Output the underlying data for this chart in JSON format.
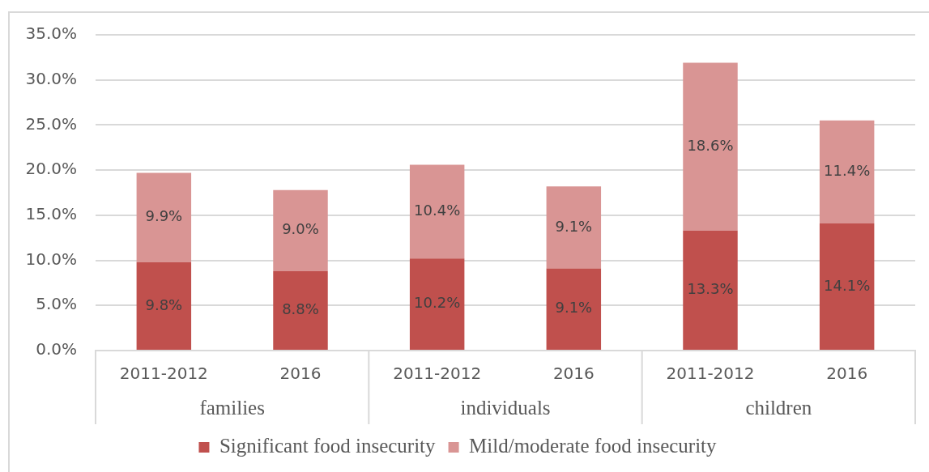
{
  "chart_data": {
    "type": "bar",
    "stacked": true,
    "categories": [
      "2011-2012",
      "2016",
      "2011-2012",
      "2016",
      "2011-2012",
      "2016"
    ],
    "series": [
      {
        "name": "Significant food insecurity",
        "color": "#c0504d",
        "values": [
          9.8,
          8.8,
          10.2,
          9.1,
          13.3,
          14.1
        ],
        "value_labels": [
          "9.8%",
          "8.8%",
          "10.2%",
          "9.1%",
          "13.3%",
          "14.1%"
        ]
      },
      {
        "name": "Mild/moderate food insecurity",
        "color": "#d99594",
        "values": [
          9.9,
          9.0,
          10.4,
          9.1,
          18.6,
          11.4
        ],
        "value_labels": [
          "9.9%",
          "9.0%",
          "10.4%",
          "9.1%",
          "18.6%",
          "11.4%"
        ]
      }
    ],
    "ylim": [
      0,
      35
    ],
    "yticks": [
      {
        "value": 0,
        "label": "0.0%"
      },
      {
        "value": 5,
        "label": "5.0%"
      },
      {
        "value": 10,
        "label": "10.0%"
      },
      {
        "value": 15,
        "label": "15.0%"
      },
      {
        "value": 20,
        "label": "20.0%"
      },
      {
        "value": 25,
        "label": "25.0%"
      },
      {
        "value": 30,
        "label": "30.0%"
      },
      {
        "value": 35,
        "label": "35.0%"
      }
    ],
    "grid": "y",
    "legend": "bottom",
    "annotations": [
      "families",
      "individuals",
      "children"
    ]
  }
}
